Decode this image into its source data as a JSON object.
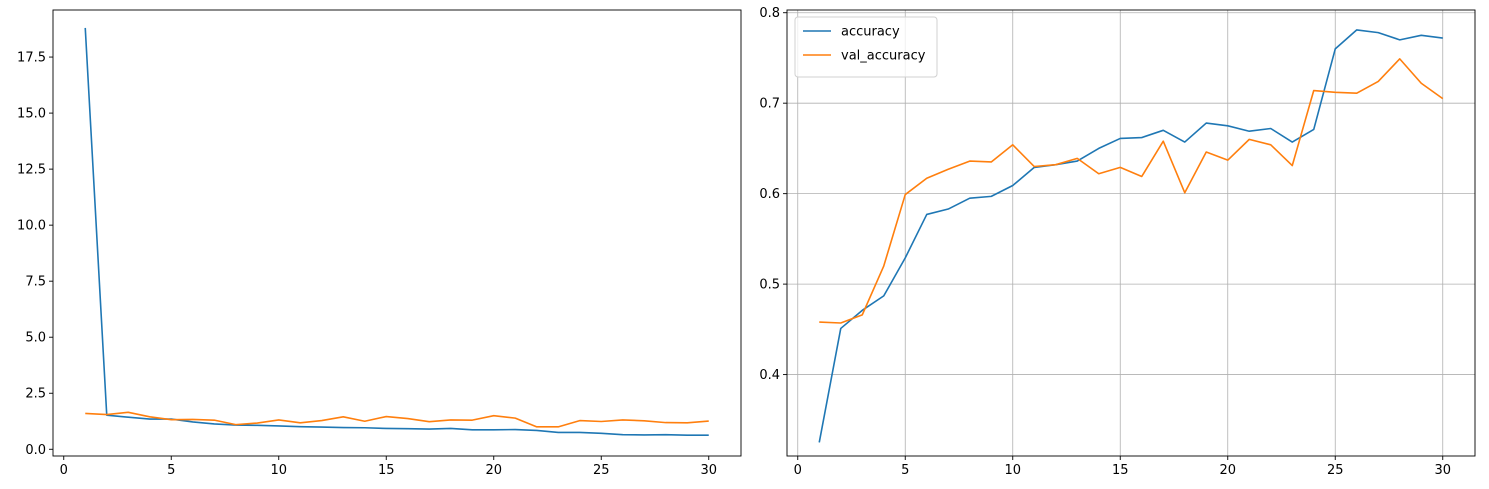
{
  "chart_data": [
    {
      "type": "line",
      "title": "",
      "xlabel": "",
      "ylabel": "",
      "grid": false,
      "legend": null,
      "xlim": [
        -0.5,
        31.5
      ],
      "ylim": [
        -0.3,
        19.6
      ],
      "xticks": [
        0,
        5,
        10,
        15,
        20,
        25,
        30
      ],
      "xtick_labels": [
        "0",
        "5",
        "10",
        "15",
        "20",
        "25",
        "30"
      ],
      "yticks": [
        0.0,
        2.5,
        5.0,
        7.5,
        10.0,
        12.5,
        15.0,
        17.5
      ],
      "ytick_labels": [
        "0.0",
        "2.5",
        "5.0",
        "7.5",
        "10.0",
        "12.5",
        "15.0",
        "17.5"
      ],
      "x": [
        1,
        2,
        3,
        4,
        5,
        6,
        7,
        8,
        9,
        10,
        11,
        12,
        13,
        14,
        15,
        16,
        17,
        18,
        19,
        20,
        21,
        22,
        23,
        24,
        25,
        26,
        27,
        28,
        29,
        30
      ],
      "series": [
        {
          "color": "#1f77b4",
          "values": [
            18.8,
            1.52,
            1.43,
            1.35,
            1.35,
            1.22,
            1.13,
            1.08,
            1.07,
            1.04,
            1.01,
            0.99,
            0.97,
            0.96,
            0.93,
            0.92,
            0.9,
            0.93,
            0.87,
            0.87,
            0.88,
            0.84,
            0.75,
            0.75,
            0.71,
            0.65,
            0.64,
            0.65,
            0.63,
            0.63
          ]
        },
        {
          "color": "#ff7f0e",
          "values": [
            1.6,
            1.55,
            1.65,
            1.45,
            1.32,
            1.33,
            1.3,
            1.1,
            1.17,
            1.31,
            1.18,
            1.28,
            1.45,
            1.25,
            1.46,
            1.37,
            1.23,
            1.31,
            1.3,
            1.5,
            1.39,
            1.0,
            1.0,
            1.28,
            1.24,
            1.31,
            1.27,
            1.19,
            1.18,
            1.26
          ]
        }
      ]
    },
    {
      "type": "line",
      "title": "",
      "xlabel": "",
      "ylabel": "",
      "grid": true,
      "legend": "top-left",
      "xlim": [
        -0.5,
        31.5
      ],
      "ylim": [
        0.31,
        0.803
      ],
      "xticks": [
        0,
        5,
        10,
        15,
        20,
        25,
        30
      ],
      "xtick_labels": [
        "0",
        "5",
        "10",
        "15",
        "20",
        "25",
        "30"
      ],
      "yticks": [
        0.4,
        0.5,
        0.6,
        0.7,
        0.8
      ],
      "ytick_labels": [
        "0.4",
        "0.5",
        "0.6",
        "0.7",
        "0.8"
      ],
      "x": [
        1,
        2,
        3,
        4,
        5,
        6,
        7,
        8,
        9,
        10,
        11,
        12,
        13,
        14,
        15,
        16,
        17,
        18,
        19,
        20,
        21,
        22,
        23,
        24,
        25,
        26,
        27,
        28,
        29,
        30
      ],
      "series": [
        {
          "name": "accuracy",
          "color": "#1f77b4",
          "values": [
            0.325,
            0.451,
            0.471,
            0.487,
            0.529,
            0.577,
            0.583,
            0.595,
            0.597,
            0.609,
            0.629,
            0.632,
            0.636,
            0.65,
            0.661,
            0.662,
            0.67,
            0.657,
            0.678,
            0.675,
            0.669,
            0.672,
            0.657,
            0.671,
            0.76,
            0.781,
            0.778,
            0.77,
            0.775,
            0.772
          ]
        },
        {
          "name": "val_accuracy",
          "color": "#ff7f0e",
          "values": [
            0.458,
            0.457,
            0.466,
            0.52,
            0.599,
            0.617,
            0.627,
            0.636,
            0.635,
            0.654,
            0.63,
            0.632,
            0.639,
            0.622,
            0.629,
            0.619,
            0.658,
            0.601,
            0.646,
            0.637,
            0.66,
            0.654,
            0.631,
            0.714,
            0.712,
            0.711,
            0.724,
            0.749,
            0.722,
            0.705
          ]
        }
      ]
    }
  ]
}
